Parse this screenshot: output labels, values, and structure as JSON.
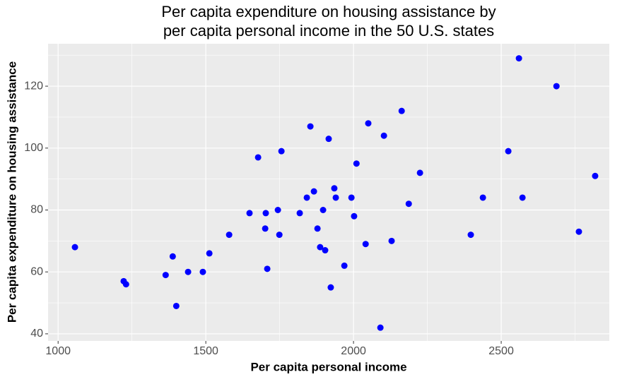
{
  "chart_data": {
    "type": "scatter",
    "title": [
      "Per capita expenditure on housing assistance by",
      "per capita personal income in the 50 U.S. states"
    ],
    "x_label": "Per capita personal income",
    "y_label": "Per capita expenditure on housing assistance",
    "color": "#0000ff",
    "x": [
      1057,
      1222,
      1230,
      1364,
      1388,
      1400,
      1440,
      1490,
      1512,
      1579,
      1648,
      1677,
      1701,
      1703,
      1708,
      1744,
      1749,
      1756,
      1818,
      1842,
      1854,
      1866,
      1878,
      1887,
      1897,
      1904,
      1916,
      1923,
      1935,
      1940,
      1969,
      1993,
      2002,
      2010,
      2041,
      2050,
      2091,
      2103,
      2129,
      2163,
      2187,
      2225,
      2397,
      2438,
      2524,
      2560,
      2572,
      2687,
      2763,
      2818
    ],
    "y": [
      68,
      57,
      56,
      59,
      65,
      49,
      60,
      60,
      66,
      72,
      79,
      97,
      74,
      79,
      61,
      80,
      72,
      99,
      79,
      84,
      107,
      86,
      74,
      68,
      80,
      67,
      103,
      55,
      87,
      84,
      62,
      84,
      78,
      95,
      69,
      108,
      42,
      104,
      70,
      112,
      82,
      92,
      72,
      84,
      99,
      129,
      84,
      120,
      73,
      91
    ],
    "xlim": [
      966,
      2866
    ],
    "ylim": [
      37.7,
      133.7
    ],
    "xticks": [
      1000,
      1500,
      2000,
      2500
    ],
    "yticks": [
      40,
      60,
      80,
      100,
      120
    ],
    "grid": true
  }
}
